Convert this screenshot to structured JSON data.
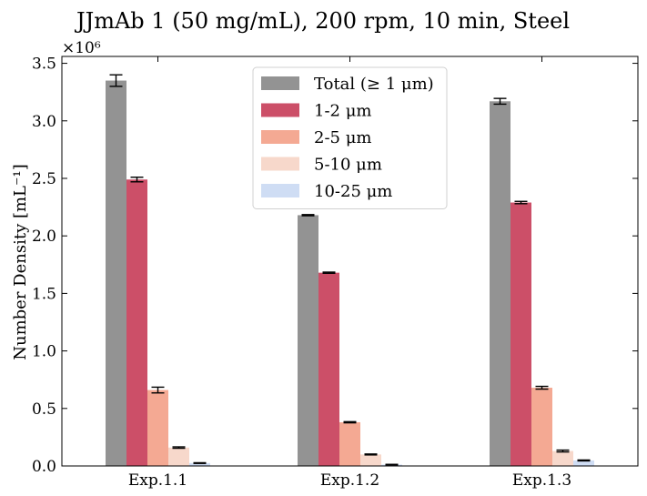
{
  "chart_data": {
    "type": "bar",
    "title": "JJmAb 1 (50 mg/mL), 200 rpm, 10 min, Steel",
    "xlabel": "",
    "ylabel": "Number Density [mL⁻¹]",
    "y_multiplier": "×10⁶",
    "categories": [
      "Exp.1.1",
      "Exp.1.2",
      "Exp.1.3"
    ],
    "ylim": [
      0,
      3.56
    ],
    "yticks": [
      "0.0",
      "0.5",
      "1.0",
      "1.5",
      "2.0",
      "2.5",
      "3.0",
      "3.5"
    ],
    "grid": false,
    "legend_position": "top-center",
    "series": [
      {
        "name": "Total (≥ 1 μm)",
        "color": "#939393",
        "values": [
          3.35,
          2.18,
          3.17
        ],
        "errors": [
          0.05,
          0.005,
          0.025
        ]
      },
      {
        "name": "1-2 μm",
        "color": "#cc4f68",
        "values": [
          2.49,
          1.68,
          2.29
        ],
        "errors": [
          0.02,
          0.005,
          0.01
        ]
      },
      {
        "name": "2-5 μm",
        "color": "#f4a993",
        "values": [
          0.66,
          0.38,
          0.68
        ],
        "errors": [
          0.025,
          0.005,
          0.012
        ]
      },
      {
        "name": "5-10 μm",
        "color": "#f7d8cb",
        "values": [
          0.16,
          0.1,
          0.13
        ],
        "errors": [
          0.006,
          0.004,
          0.008
        ]
      },
      {
        "name": "10-25 μm",
        "color": "#cfddf4",
        "values": [
          0.025,
          0.012,
          0.048
        ],
        "errors": [
          0.003,
          0.002,
          0.004
        ]
      }
    ]
  }
}
